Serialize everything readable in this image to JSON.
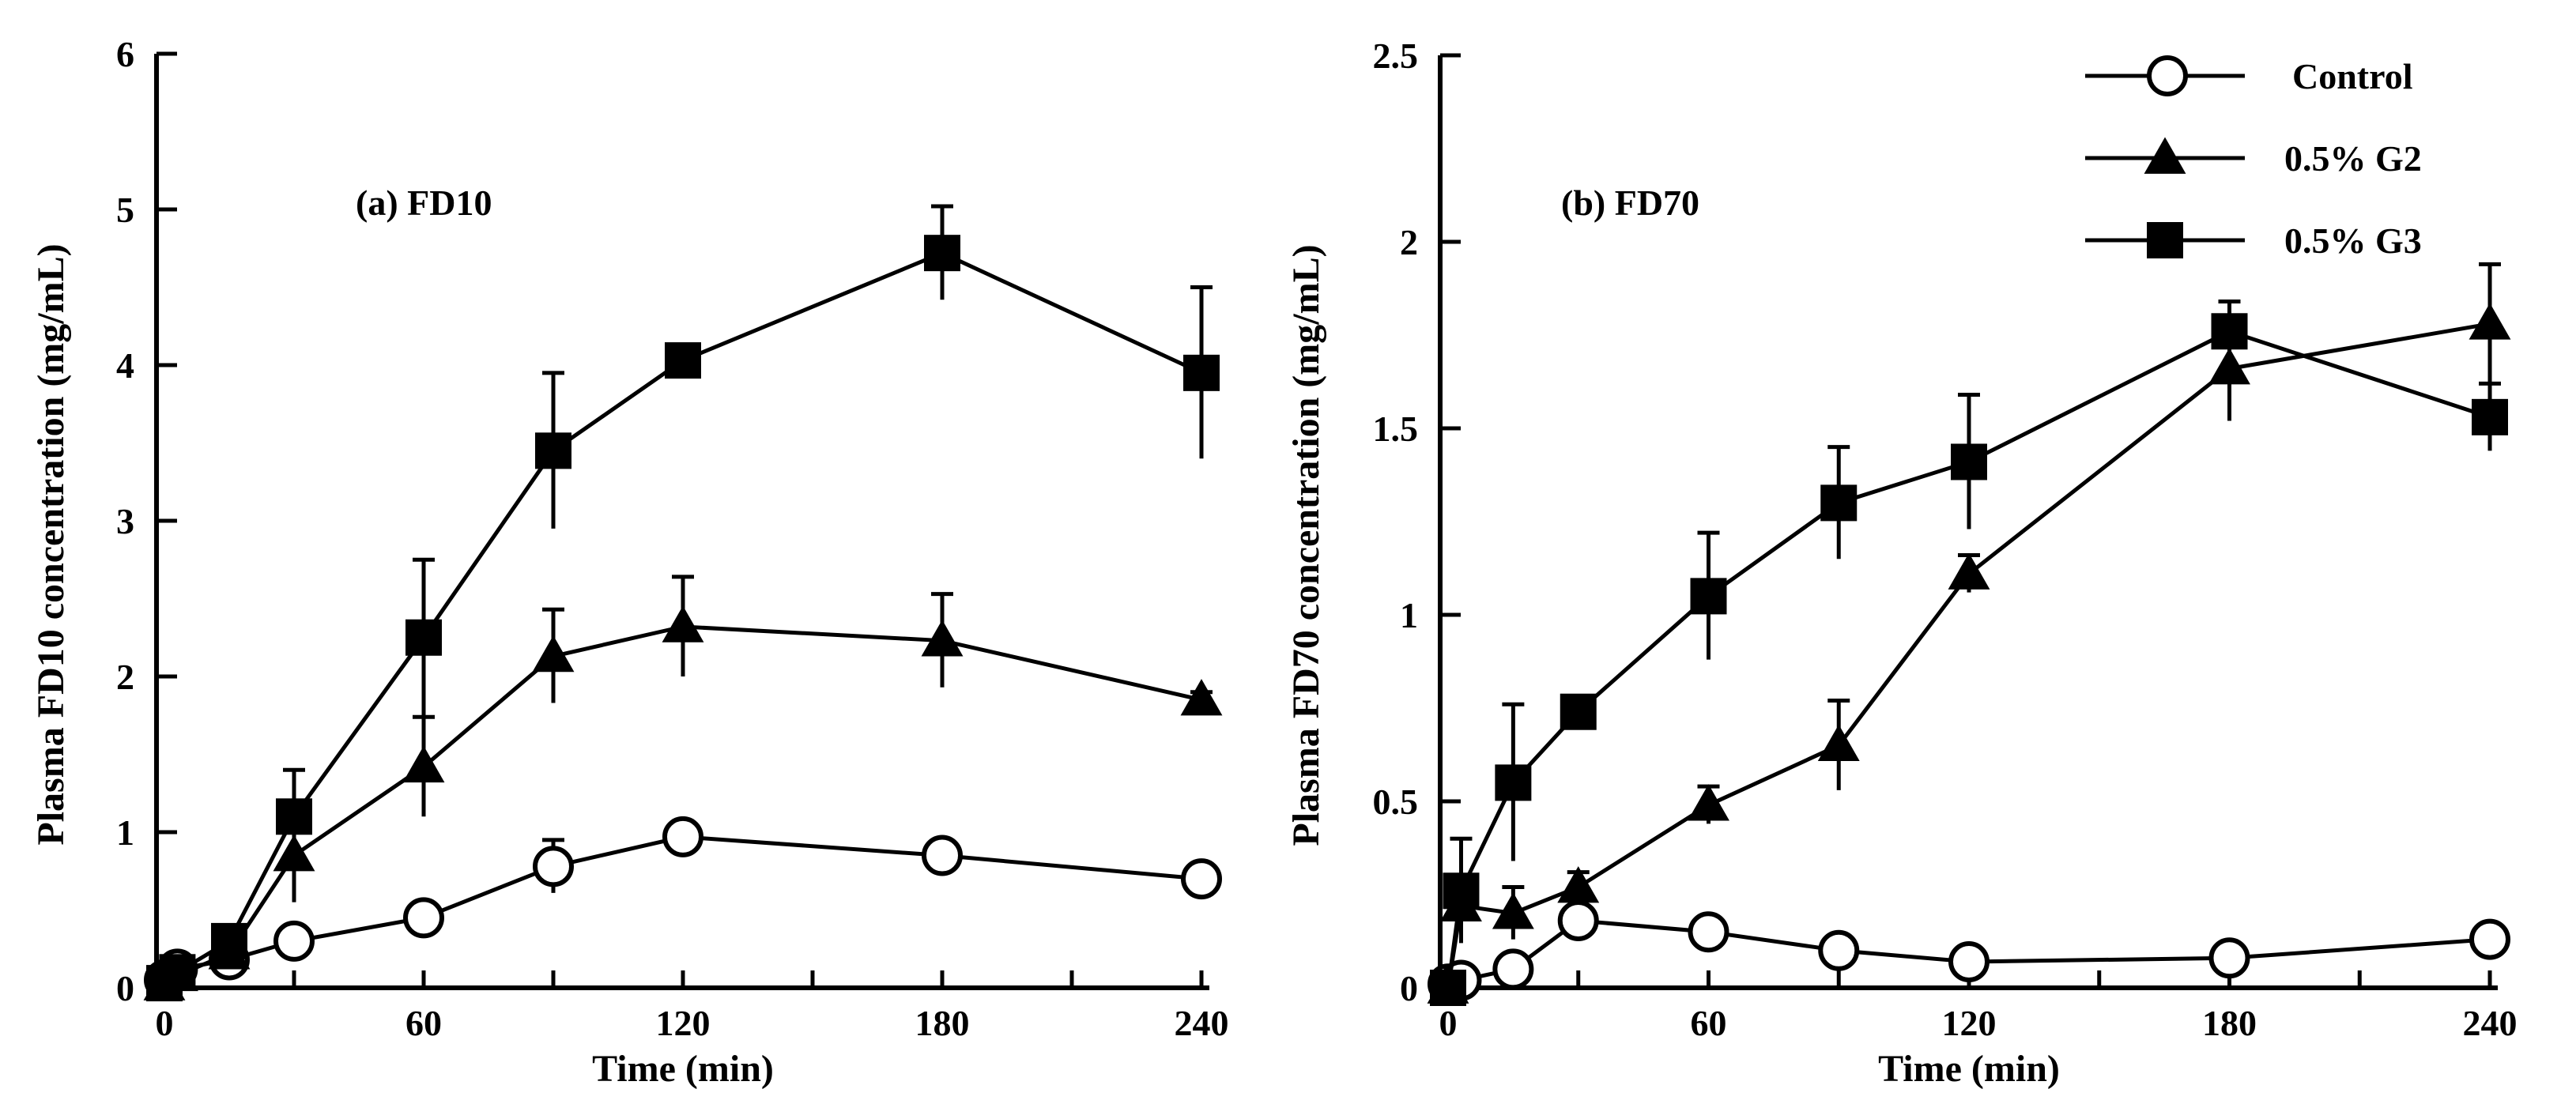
{
  "chart_data": [
    {
      "type": "line",
      "title": "(a) FD10",
      "xlabel": "Time (min)",
      "ylabel": "Plasma FD10 concentration (mg/mL)",
      "xlim": [
        0,
        240
      ],
      "ylim": [
        0,
        6
      ],
      "xticks": [
        0,
        60,
        120,
        180,
        240
      ],
      "xtick_labels": [
        "0",
        "60",
        "120",
        "180",
        "240"
      ],
      "yticks": [
        0,
        1,
        2,
        3,
        4,
        5,
        6
      ],
      "ytick_labels": [
        "0",
        "1",
        "2",
        "3",
        "4",
        "5",
        "6"
      ],
      "series": [
        {
          "name": "Control",
          "marker": "circle-open",
          "x": [
            0,
            3,
            15,
            30,
            60,
            90,
            120,
            180,
            240
          ],
          "y": [
            0.05,
            0.12,
            0.18,
            0.3,
            0.45,
            0.78,
            0.97,
            0.85,
            0.7
          ],
          "err": [
            0.05,
            0.05,
            0.05,
            0.05,
            0.06,
            0.17,
            0.1,
            0.08,
            0.07
          ]
        },
        {
          "name": "0.5% G2",
          "marker": "triangle-filled",
          "x": [
            0,
            3,
            15,
            30,
            60,
            90,
            120,
            180,
            240
          ],
          "y": [
            0.02,
            0.08,
            0.22,
            0.85,
            1.42,
            2.13,
            2.32,
            2.23,
            1.85
          ],
          "err": [
            0.03,
            0.05,
            0.05,
            0.3,
            0.32,
            0.3,
            0.32,
            0.3,
            0.05
          ]
        },
        {
          "name": "0.5% G3",
          "marker": "square-filled",
          "x": [
            0,
            3,
            15,
            30,
            60,
            90,
            120,
            180,
            240
          ],
          "y": [
            0.03,
            0.1,
            0.3,
            1.1,
            2.25,
            3.45,
            4.03,
            4.72,
            3.95
          ],
          "err": [
            0.03,
            0.05,
            0.05,
            0.3,
            0.5,
            0.5,
            0.1,
            0.3,
            0.55
          ]
        }
      ]
    },
    {
      "type": "line",
      "title": "(b) FD70",
      "xlabel": "Time (min)",
      "ylabel": "Plasma FD70 concentration (mg/mL)",
      "xlim": [
        0,
        240
      ],
      "ylim": [
        0,
        2.5
      ],
      "xticks": [
        0,
        60,
        120,
        180,
        240
      ],
      "xtick_labels": [
        "0",
        "60",
        "120",
        "180",
        "240"
      ],
      "yticks": [
        0,
        0.5,
        1,
        1.5,
        2,
        2.5
      ],
      "ytick_labels": [
        "0",
        "0.5",
        "1",
        "1.5",
        "2",
        "2.5"
      ],
      "legend": {
        "position": "top-right",
        "entries": [
          "Control",
          "0.5% G2",
          "0.5% G3"
        ]
      },
      "series": [
        {
          "name": "Control",
          "marker": "circle-open",
          "x": [
            0,
            3,
            15,
            30,
            60,
            90,
            120,
            180,
            240
          ],
          "y": [
            0.01,
            0.02,
            0.05,
            0.18,
            0.15,
            0.1,
            0.07,
            0.08,
            0.13
          ],
          "err": [
            0.02,
            0.02,
            0.03,
            0.03,
            0.03,
            0.02,
            0.02,
            0.02,
            0.04
          ]
        },
        {
          "name": "0.5% G2",
          "marker": "triangle-filled",
          "x": [
            0,
            3,
            15,
            30,
            60,
            90,
            120,
            180,
            240
          ],
          "y": [
            0.0,
            0.22,
            0.2,
            0.27,
            0.49,
            0.65,
            1.11,
            1.66,
            1.78
          ],
          "err": [
            0.02,
            0.05,
            0.07,
            0.04,
            0.05,
            0.12,
            0.05,
            0.14,
            0.16
          ]
        },
        {
          "name": "0.5% G3",
          "marker": "square-filled",
          "x": [
            0,
            3,
            15,
            30,
            60,
            90,
            120,
            180,
            240
          ],
          "y": [
            0.0,
            0.26,
            0.55,
            0.74,
            1.05,
            1.3,
            1.41,
            1.76,
            1.53
          ],
          "err": [
            0.02,
            0.14,
            0.21,
            0.03,
            0.17,
            0.15,
            0.18,
            0.08,
            0.09
          ]
        }
      ]
    }
  ]
}
